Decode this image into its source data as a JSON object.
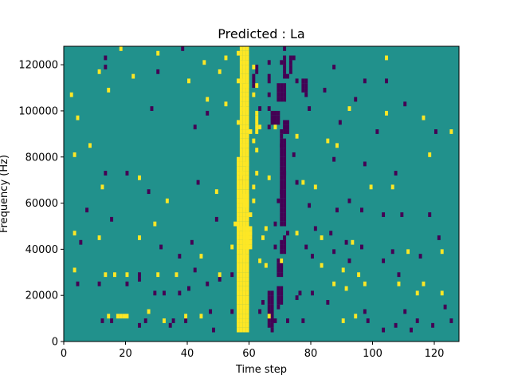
{
  "chart_data": {
    "type": "heatmap",
    "title": "Predicted : La",
    "xlabel": "Time step",
    "ylabel": "Frequency (Hz)",
    "xlim": [
      0,
      128
    ],
    "ylim": [
      0,
      128000
    ],
    "x_ticks": [
      0,
      20,
      40,
      60,
      80,
      100,
      120
    ],
    "x_tick_labels": [
      "0",
      "20",
      "40",
      "60",
      "80",
      "100",
      "120"
    ],
    "y_ticks": [
      0,
      20000,
      40000,
      60000,
      80000,
      100000,
      120000
    ],
    "y_tick_labels": [
      "0",
      "20000",
      "40000",
      "60000",
      "80000",
      "100000",
      "120000"
    ],
    "n_time_steps": 128,
    "n_freq_bins": 64,
    "freq_bin_hz": 2000,
    "colors": {
      "low": "#440154",
      "mid": "#21918c",
      "high": "#fde725"
    },
    "background_level": "mid",
    "grid": false,
    "high_cells": [
      [
        24,
        127
      ],
      [
        112,
        127
      ],
      [
        89,
        126
      ],
      [
        100,
        123
      ],
      [
        107,
        123
      ],
      [
        43,
        122
      ],
      [
        26,
        121
      ],
      [
        64,
        120
      ],
      [
        78,
        117
      ],
      [
        111,
        117
      ],
      [
        68,
        114
      ],
      [
        95,
        113
      ],
      [
        74,
        113
      ],
      [
        52,
        113
      ],
      [
        102,
        111
      ],
      [
        61,
        111
      ],
      [
        58,
        111
      ],
      [
        122,
        110
      ],
      [
        114,
        109
      ],
      [
        91,
        109
      ],
      [
        84,
        107
      ],
      [
        76,
        107
      ],
      [
        59,
        107
      ],
      [
        32,
        107
      ],
      [
        10,
        106
      ],
      [
        5,
        105
      ],
      [
        126,
        105
      ],
      [
        86,
        105
      ],
      [
        29,
        104
      ],
      [
        17,
        104
      ],
      [
        59,
        104
      ],
      [
        77,
        103
      ],
      [
        63,
        102
      ],
      [
        53,
        102
      ],
      [
        43,
        102
      ],
      [
        120,
        100
      ],
      [
        56,
        99
      ],
      [
        57,
        98
      ],
      [
        96,
        97
      ],
      [
        31,
        97
      ],
      [
        98,
        93
      ],
      [
        61,
        95
      ],
      [
        57,
        93
      ],
      [
        85,
        93
      ],
      [
        105,
        91
      ],
      [
        110,
        88
      ],
      [
        74,
        87
      ],
      [
        63,
        85
      ],
      [
        102,
        85
      ],
      [
        115,
        83
      ],
      [
        50,
        82
      ],
      [
        57,
        81
      ],
      [
        58,
        77
      ],
      [
        59,
        75
      ],
      [
        60,
        73
      ],
      [
        57,
        71
      ],
      [
        61,
        70
      ],
      [
        56,
        68
      ],
      [
        80,
        66
      ],
      [
        8,
        64
      ],
      [
        118,
        65
      ],
      [
        49,
        64
      ],
      [
        119,
        66
      ],
      [
        89,
        65
      ],
      [
        101,
        64
      ],
      [
        18,
        63
      ],
      [
        30,
        62
      ],
      [
        104,
        61
      ],
      [
        52,
        61
      ],
      [
        45,
        60
      ],
      [
        11,
        58
      ],
      [
        22,
        57
      ],
      [
        57,
        56
      ],
      [
        62,
        55
      ],
      [
        61,
        53
      ],
      [
        52,
        51
      ],
      [
        92,
        50
      ],
      [
        104,
        49
      ],
      [
        116,
        48
      ],
      [
        56,
        47
      ],
      [
        63,
        46
      ],
      [
        68,
        46
      ],
      [
        125,
        45
      ],
      [
        75,
        44
      ],
      [
        85,
        43
      ],
      [
        88,
        42
      ],
      [
        118,
        40
      ],
      [
        59,
        38
      ],
      [
        62,
        36
      ],
      [
        66,
        35
      ],
      [
        77,
        34
      ],
      [
        81,
        33
      ],
      [
        99,
        33
      ],
      [
        106,
        33
      ],
      [
        12,
        33
      ],
      [
        24,
        35
      ],
      [
        33,
        30
      ],
      [
        49,
        32
      ],
      [
        60,
        27
      ],
      [
        55,
        25
      ],
      [
        65,
        24
      ],
      [
        75,
        23
      ],
      [
        83,
        22
      ],
      [
        93,
        21
      ],
      [
        111,
        19
      ],
      [
        122,
        19
      ],
      [
        44,
        18
      ],
      [
        58,
        18
      ],
      [
        63,
        17
      ],
      [
        70,
        17
      ],
      [
        83,
        16
      ],
      [
        90,
        15
      ],
      [
        95,
        14
      ],
      [
        13,
        14
      ],
      [
        16,
        14
      ],
      [
        20,
        14
      ],
      [
        30,
        14
      ],
      [
        36,
        14
      ],
      [
        50,
        14
      ],
      [
        97,
        12
      ],
      [
        108,
        12
      ],
      [
        116,
        12
      ],
      [
        122,
        10
      ],
      [
        87,
        12
      ],
      [
        91,
        11
      ],
      [
        114,
        10
      ],
      [
        27,
        6
      ],
      [
        17,
        5
      ],
      [
        18,
        5
      ],
      [
        19,
        5
      ],
      [
        20,
        5
      ],
      [
        14,
        5
      ],
      [
        32,
        4
      ],
      [
        39,
        5
      ],
      [
        44,
        5
      ],
      [
        66,
        5
      ],
      [
        90,
        4
      ],
      [
        94,
        5
      ],
      [
        11,
        22
      ],
      [
        24,
        22
      ],
      [
        29,
        25
      ],
      [
        3,
        15
      ],
      [
        3,
        23
      ],
      [
        3,
        40
      ],
      [
        8,
        42
      ],
      [
        4,
        48
      ],
      [
        2,
        53
      ],
      [
        14,
        54
      ],
      [
        4,
        68
      ],
      [
        3,
        81
      ],
      [
        10,
        73
      ],
      [
        7,
        94
      ],
      [
        12,
        92
      ],
      [
        16,
        71
      ],
      [
        32,
        65
      ],
      [
        42,
        65
      ],
      [
        40,
        56
      ],
      [
        46,
        52
      ],
      [
        50,
        58
      ],
      [
        56,
        62
      ],
      [
        58,
        60
      ],
      [
        56,
        79
      ],
      [
        56,
        88
      ],
      [
        56,
        56
      ],
      [
        55,
        65
      ],
      [
        60,
        65
      ],
      [
        62,
        69
      ],
      [
        60,
        45
      ],
      [
        58,
        50
      ],
      [
        59,
        55
      ],
      [
        61,
        59
      ],
      [
        54,
        20
      ],
      [
        57,
        36
      ],
      [
        58,
        42
      ],
      [
        61,
        43
      ],
      [
        56,
        24
      ],
      [
        57,
        30
      ],
      [
        61,
        30
      ],
      [
        61,
        33
      ],
      [
        62,
        41
      ],
      [
        64,
        22
      ],
      [
        65,
        16
      ]
    ],
    "high_column_runs": [
      [
        56,
        60,
        2,
        40
      ],
      [
        57,
        60,
        40,
        69
      ],
      [
        57,
        59,
        69,
        78
      ],
      [
        58,
        59,
        78,
        82
      ],
      [
        56,
        59,
        103,
        104
      ],
      [
        58,
        61,
        20,
        25
      ],
      [
        62,
        63,
        45,
        50
      ],
      [
        58,
        60,
        29,
        32
      ]
    ],
    "low_cells": [
      [
        86,
        127
      ],
      [
        110,
        126
      ],
      [
        15,
        127
      ],
      [
        20,
        123
      ],
      [
        71,
        120
      ],
      [
        83,
        120
      ],
      [
        85,
        120
      ],
      [
        79,
        118
      ],
      [
        38,
        117
      ],
      [
        59,
        116
      ],
      [
        62,
        117
      ],
      [
        64,
        114
      ],
      [
        54,
        112
      ],
      [
        29,
        112
      ],
      [
        51,
        111
      ],
      [
        101,
        110
      ],
      [
        31,
        109
      ],
      [
        80,
        109
      ],
      [
        101,
        103
      ],
      [
        40,
        103
      ],
      [
        11,
        108
      ],
      [
        24,
        108
      ],
      [
        35,
        109
      ],
      [
        85,
        112
      ],
      [
        86,
        116
      ],
      [
        107,
        103
      ],
      [
        121,
        106
      ],
      [
        91,
        106
      ],
      [
        65,
        103
      ],
      [
        67,
        103
      ],
      [
        9,
        102
      ],
      [
        3,
        101
      ],
      [
        28,
        101
      ],
      [
        37,
        99
      ],
      [
        21,
        97
      ],
      [
        71,
        95
      ],
      [
        15,
        95
      ],
      [
        64,
        94
      ],
      [
        56,
        94
      ],
      [
        78,
        93
      ],
      [
        89,
        92
      ],
      [
        98,
        90
      ],
      [
        125,
        91
      ],
      [
        72,
        88
      ],
      [
        84,
        86
      ],
      [
        118,
        86
      ],
      [
        80,
        84
      ],
      [
        68,
        85
      ],
      [
        85,
        84
      ],
      [
        92,
        82
      ],
      [
        102,
        82
      ],
      [
        106,
        84
      ],
      [
        70,
        82
      ],
      [
        73,
        80
      ],
      [
        65,
        79
      ],
      [
        12,
        81
      ],
      [
        24,
        79
      ],
      [
        43,
        80
      ],
      [
        97,
        77
      ],
      [
        115,
        77
      ],
      [
        70,
        76
      ],
      [
        63,
        76
      ],
      [
        81,
        74
      ],
      [
        83,
        75
      ],
      [
        69,
        73
      ],
      [
        72,
        72
      ],
      [
        76,
        71
      ],
      [
        78,
        68
      ],
      [
        65,
        66
      ],
      [
        68,
        66
      ],
      [
        71,
        63
      ],
      [
        74,
        61
      ],
      [
        84,
        65
      ],
      [
        86,
        65
      ],
      [
        93,
        67
      ],
      [
        115,
        67
      ],
      [
        66,
        60
      ],
      [
        70,
        60
      ],
      [
        72,
        57
      ],
      [
        75,
        56
      ],
      [
        87,
        59
      ],
      [
        97,
        56
      ],
      [
        104,
        56
      ],
      [
        66,
        53
      ],
      [
        78,
        53
      ],
      [
        84,
        54
      ],
      [
        94,
        52
      ],
      [
        110,
        51
      ],
      [
        13,
        59
      ],
      [
        13,
        61
      ],
      [
        18,
        64
      ],
      [
        38,
        63
      ],
      [
        30,
        58
      ],
      [
        63,
        50
      ],
      [
        66,
        50
      ],
      [
        79,
        50
      ],
      [
        89,
        47
      ],
      [
        101,
        45
      ],
      [
        120,
        45
      ],
      [
        66,
        46
      ],
      [
        70,
        42
      ],
      [
        74,
        40
      ],
      [
        87,
        39
      ],
      [
        97,
        38
      ],
      [
        107,
        36
      ],
      [
        71,
        36
      ],
      [
        75,
        34
      ],
      [
        92,
        30
      ],
      [
        70,
        32
      ],
      [
        79,
        29
      ],
      [
        88,
        28
      ],
      [
        96,
        28
      ],
      [
        103,
        27
      ],
      [
        109,
        27
      ],
      [
        118,
        27
      ],
      [
        69,
        30
      ],
      [
        68,
        25
      ],
      [
        72,
        23
      ],
      [
        81,
        24
      ],
      [
        86,
        23
      ],
      [
        91,
        21
      ],
      [
        96,
        20
      ],
      [
        106,
        19
      ],
      [
        115,
        18
      ],
      [
        71,
        22
      ],
      [
        60,
        22
      ],
      [
        68,
        20
      ],
      [
        78,
        20
      ],
      [
        80,
        18
      ],
      [
        87,
        19
      ],
      [
        92,
        17
      ],
      [
        103,
        17
      ],
      [
        15,
        26
      ],
      [
        31,
        20
      ],
      [
        37,
        18
      ],
      [
        41,
        21
      ],
      [
        49,
        26
      ],
      [
        24,
        14
      ],
      [
        46,
        12
      ],
      [
        37,
        10
      ],
      [
        11,
        12
      ],
      [
        20,
        12
      ],
      [
        24,
        13
      ],
      [
        29,
        10
      ],
      [
        32,
        10
      ],
      [
        54,
        14
      ],
      [
        59,
        10
      ],
      [
        64,
        8
      ],
      [
        75,
        9
      ],
      [
        85,
        8
      ],
      [
        97,
        6
      ],
      [
        110,
        6
      ],
      [
        123,
        7
      ],
      [
        76,
        10
      ],
      [
        80,
        10
      ],
      [
        69,
        7
      ],
      [
        63,
        6
      ],
      [
        12,
        4
      ],
      [
        15,
        4
      ],
      [
        26,
        4
      ],
      [
        35,
        4
      ],
      [
        39,
        4
      ],
      [
        47,
        6
      ],
      [
        54,
        6
      ],
      [
        68,
        4
      ],
      [
        72,
        4
      ],
      [
        77,
        4
      ],
      [
        98,
        4
      ],
      [
        107,
        3
      ],
      [
        114,
        4
      ],
      [
        125,
        4
      ],
      [
        119,
        3
      ],
      [
        24,
        3
      ],
      [
        34,
        3
      ],
      [
        48,
        2
      ],
      [
        67,
        2
      ],
      [
        103,
        2
      ],
      [
        112,
        2
      ],
      [
        50,
        13
      ],
      [
        42,
        15
      ],
      [
        108,
        14
      ],
      [
        121,
        22
      ],
      [
        40,
        11
      ],
      [
        16,
        68
      ],
      [
        11,
        72
      ],
      [
        8,
        86
      ],
      [
        31,
        70
      ],
      [
        38,
        68
      ],
      [
        42,
        46
      ],
      [
        46,
        49
      ],
      [
        28,
        50
      ],
      [
        43,
        34
      ],
      [
        27,
        32
      ],
      [
        20,
        36
      ],
      [
        13,
        36
      ],
      [
        7,
        28
      ],
      [
        5,
        21
      ],
      [
        4,
        12
      ],
      [
        2,
        102
      ],
      [
        7,
        120
      ],
      [
        38,
        101
      ],
      [
        102,
        104
      ]
    ],
    "low_column_runs": [
      [
        69,
        72,
        52,
        56
      ],
      [
        71,
        73,
        45,
        48
      ],
      [
        67,
        70,
        47,
        50
      ],
      [
        66,
        68,
        66,
        69
      ],
      [
        70,
        72,
        25,
        34
      ],
      [
        70,
        72,
        34,
        44
      ],
      [
        70,
        71,
        44,
        46
      ],
      [
        66,
        68,
        3,
        11
      ],
      [
        69,
        71,
        8,
        12
      ],
      [
        69,
        71,
        14,
        18
      ],
      [
        70,
        72,
        19,
        22
      ],
      [
        79,
        80,
        114,
        120
      ],
      [
        84,
        85,
        112,
        119
      ],
      [
        86,
        87,
        114,
        119
      ],
      [
        61,
        62,
        55,
        58
      ],
      [
        66,
        67,
        56,
        58
      ],
      [
        62,
        63,
        58,
        60
      ],
      [
        57,
        58,
        34,
        36
      ],
      [
        71,
        72,
        57,
        62
      ],
      [
        73,
        74,
        58,
        62
      ],
      [
        70,
        72,
        73,
        78
      ],
      [
        77,
        79,
        54,
        57
      ]
    ]
  }
}
